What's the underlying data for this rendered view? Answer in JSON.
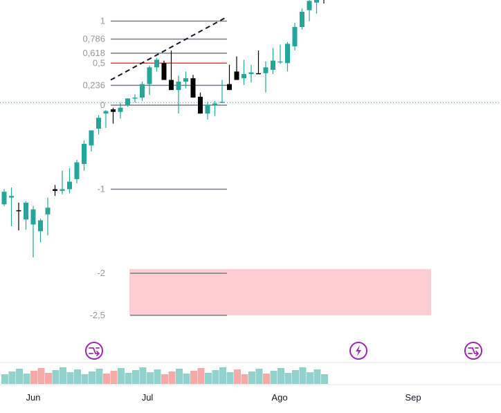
{
  "colors": {
    "up": "#26a69a",
    "down": "#000000",
    "volume_up": "#92d2cc",
    "volume_down": "#f7a9a7",
    "fib_line": "#787b86",
    "fib_half": "#f23645",
    "zone_fill": "#ffcdd2",
    "event_icon": "#9c27b0",
    "last_price_line": "#26a69a",
    "axis_text": "#131722"
  },
  "icons": [
    "split-icon",
    "dividend-icon",
    "split-icon"
  ],
  "chart_data": {
    "type": "candlestick",
    "x_axis": {
      "labels": [
        "Jun",
        "Jul",
        "Ago",
        "Sep"
      ]
    },
    "y_axis": {
      "unit": "fib-ratio",
      "range": [
        -2.9,
        1.05
      ]
    },
    "fib_retracement": {
      "levels": [
        {
          "label": "1",
          "value": 1
        },
        {
          "label": "0,786",
          "value": 0.786
        },
        {
          "label": "0,618",
          "value": 0.618
        },
        {
          "label": "0,5",
          "value": 0.5,
          "highlight": true
        },
        {
          "label": "0,236",
          "value": 0.236
        },
        {
          "label": "0",
          "value": 0
        },
        {
          "label": "-1",
          "value": -1
        },
        {
          "label": "-2",
          "value": -2
        },
        {
          "label": "-2,5",
          "value": -2.5
        }
      ]
    },
    "trend_line": {
      "from": [
        0,
        0.3
      ],
      "to": [
        28.8,
        1.05
      ]
    },
    "zone": {
      "x": [
        17.7,
        43.3
      ],
      "y": [
        -2.5,
        -1.95
      ]
    },
    "last_price": 0.03,
    "candles": [
      [
        0.12,
        0.3,
        0.27,
        0.1
      ],
      [
        0.2,
        0.32,
        0.22,
        -0.14
      ],
      [
        0.05,
        0.14,
        0.04,
        -0.19
      ],
      [
        -0.06,
        0.16,
        0.14,
        -0.18
      ],
      [
        -0.12,
        0.1,
        0.06,
        -0.51
      ],
      [
        -0.2,
        -0.05,
        -0.07,
        -0.33
      ],
      [
        0,
        0.2,
        0.08,
        -0.25
      ],
      [
        0.3,
        0.35,
        0.28,
        0.22
      ],
      [
        0.28,
        0.52,
        0.3,
        0.24
      ],
      [
        0.3,
        0.55,
        0.39,
        0.25
      ],
      [
        0.42,
        0.65,
        0.62,
        0.37
      ],
      [
        0.6,
        0.88,
        0.84,
        0.52
      ],
      [
        0.82,
        0.98,
        1,
        0.75
      ],
      [
        1.02,
        1.18,
        1.15,
        0.95
      ],
      [
        1.2,
        1.24,
        1.23,
        1.03
      ],
      [
        1.25,
        1.27,
        1.22,
        1.08
      ],
      [
        1.22,
        1.33,
        1.27,
        1.14
      ],
      [
        1.3,
        1.35,
        1.38,
        1.28
      ],
      [
        1.38,
        1.43,
        1.39,
        1.33
      ],
      [
        1.39,
        1.58,
        1.55,
        1.35
      ],
      [
        1.55,
        1.77,
        1.75,
        1.42
      ],
      [
        1.75,
        1.86,
        1.84,
        1.7
      ],
      [
        1.8,
        1.83,
        1.6,
        1.75
      ],
      [
        1.6,
        1.95,
        1.48,
        1.52
      ],
      [
        1.48,
        1.65,
        1.58,
        1.2
      ],
      [
        1.58,
        1.7,
        1.62,
        1.5
      ],
      [
        1.62,
        1.66,
        1.39,
        1.48
      ],
      [
        1.4,
        1.45,
        1.2,
        1.28
      ],
      [
        1.2,
        1.34,
        1.3,
        1.13
      ],
      [
        1.3,
        1.35,
        1.32,
        1.17
      ],
      [
        1.33,
        1.6,
        1.34,
        1.48
      ],
      [
        1.55,
        1.78,
        1.48,
        1.72
      ],
      [
        1.7,
        1.88,
        1.6,
        1.64
      ],
      [
        1.62,
        1.84,
        1.67,
        1.54
      ],
      [
        1.67,
        1.78,
        1.69,
        1.57
      ],
      [
        1.68,
        1.95,
        1.67,
        1.83
      ],
      [
        1.68,
        1.82,
        1.75,
        1.45
      ],
      [
        1.72,
        1.98,
        1.83,
        1.67
      ],
      [
        1.82,
        2.02,
        1.82,
        1.79
      ],
      [
        1.8,
        2.05,
        2.03,
        1.7
      ],
      [
        2,
        2.28,
        2.23,
        1.95
      ],
      [
        2.23,
        2.45,
        2.41,
        2.2
      ],
      [
        2.43,
        2.55,
        2.54,
        2.3
      ],
      [
        2.52,
        2.64,
        2.63,
        2.39
      ],
      [
        2.63,
        2.66,
        2.61,
        2.51
      ]
    ],
    "candles_note": "",
    "volume": [
      1,
      1,
      1,
      1,
      0,
      0,
      0,
      1,
      1,
      1,
      1,
      1,
      1,
      1,
      0,
      0,
      1,
      1,
      1,
      1,
      1,
      1,
      0,
      0,
      1,
      1,
      0,
      0,
      1,
      1,
      1,
      1,
      0,
      0,
      1,
      1,
      0,
      1,
      1,
      1,
      1,
      1,
      1,
      1,
      1
    ]
  }
}
